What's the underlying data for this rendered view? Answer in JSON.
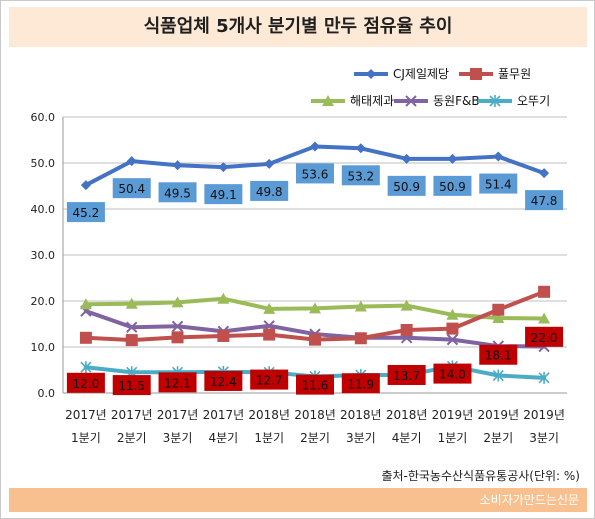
{
  "title": "식품업체 5개사 분기별 만두 점유율 추이",
  "source": "출처-한국농수산식품유통공사(단위: %)",
  "brand": "소비자가만드는신문",
  "chart_data": {
    "type": "line",
    "title": "식품업체 5개사 분기별 만두 점유율 추이",
    "categories": [
      [
        "2017년",
        "1분기"
      ],
      [
        "2017년",
        "2분기"
      ],
      [
        "2017년",
        "3분기"
      ],
      [
        "2017년",
        "4분기"
      ],
      [
        "2018년",
        "1분기"
      ],
      [
        "2018년",
        "2분기"
      ],
      [
        "2018년",
        "3분기"
      ],
      [
        "2018년",
        "4분기"
      ],
      [
        "2019년",
        "1분기"
      ],
      [
        "2019년",
        "2분기"
      ],
      [
        "2019년",
        "3분기"
      ]
    ],
    "ylim": [
      0,
      60
    ],
    "yticks": [
      "0.0",
      "10.0",
      "20.0",
      "30.0",
      "40.0",
      "50.0",
      "60.0"
    ],
    "grid": true,
    "legend": "top-right",
    "series": [
      {
        "name": "CJ제일제당",
        "color": "#4472c4",
        "marker": "diamond",
        "label_bg": "#5b9bd5",
        "values": [
          45.2,
          50.4,
          49.5,
          49.1,
          49.8,
          53.6,
          53.2,
          50.9,
          50.9,
          51.4,
          47.8
        ],
        "labels": [
          "45.2",
          "50.4",
          "49.5",
          "49.1",
          "49.8",
          "53.6",
          "53.2",
          "50.9",
          "50.9",
          "51.4",
          "47.8"
        ]
      },
      {
        "name": "풀무원",
        "color": "#c0504d",
        "marker": "square",
        "label_bg": "#c00000",
        "values": [
          12.0,
          11.5,
          12.1,
          12.4,
          12.7,
          11.6,
          11.9,
          13.7,
          14.0,
          18.1,
          22.0
        ],
        "labels": [
          "12.0",
          "11.5",
          "12.1",
          "12.4",
          "12.7",
          "11.6",
          "11.9",
          "13.7",
          "14.0",
          "18.1",
          "22.0"
        ]
      },
      {
        "name": "해태제과",
        "color": "#9bbb59",
        "marker": "triangle",
        "values": [
          19.3,
          19.4,
          19.7,
          20.5,
          18.3,
          18.4,
          18.8,
          19.0,
          17.0,
          16.3,
          16.2
        ]
      },
      {
        "name": "동원F&B",
        "color": "#8064a2",
        "marker": "x",
        "values": [
          17.8,
          14.3,
          14.5,
          13.4,
          14.6,
          12.8,
          12.0,
          12.0,
          11.6,
          10.2,
          10.1
        ]
      },
      {
        "name": "오뚜기",
        "color": "#4bacc6",
        "marker": "star",
        "values": [
          5.6,
          4.5,
          4.5,
          4.6,
          4.5,
          3.6,
          3.9,
          3.9,
          5.8,
          3.8,
          3.3
        ]
      }
    ]
  }
}
